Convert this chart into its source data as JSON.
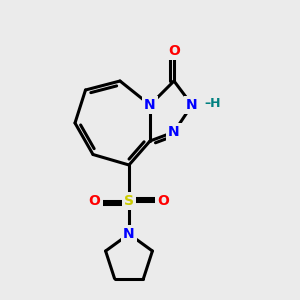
{
  "bg_color": "#ebebeb",
  "atom_colors": {
    "C": "#000000",
    "N": "#0000ff",
    "O": "#ff0000",
    "S": "#cccc00",
    "NH": "#008080"
  },
  "bond_color": "#000000",
  "bond_width": 2.2,
  "figsize": [
    3.0,
    3.0
  ],
  "dpi": 100
}
